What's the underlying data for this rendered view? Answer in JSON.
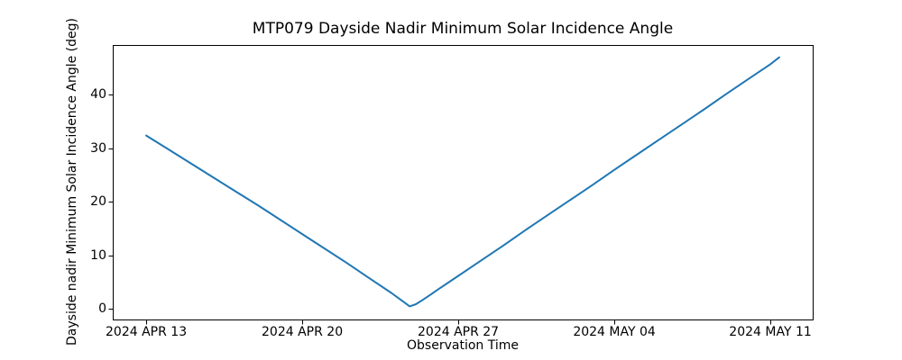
{
  "figure": {
    "background_color": "#ffffff",
    "spine_color": "#000000",
    "text_color": "#000000"
  },
  "chart_data": {
    "type": "line",
    "title": "MTP079 Dayside Nadir Minimum Solar Incidence Angle",
    "xlabel": "Observation Time",
    "ylabel": "Dayside nadir Minimum Solar Incidence Angle (deg)",
    "legend": "none",
    "grid": false,
    "line_color": "#1f77b4",
    "line_width": 2,
    "x_unit": "days since 2024 APR 13",
    "x_tick_labels": [
      "2024 APR 13",
      "2024 APR 20",
      "2024 APR 27",
      "2024 MAY 04",
      "2024 MAY 11"
    ],
    "x_tick_days": [
      0,
      7,
      14,
      21,
      28
    ],
    "y_tick_labels": [
      "0",
      "10",
      "20",
      "30",
      "40"
    ],
    "y_ticks": [
      0,
      10,
      20,
      30,
      40
    ],
    "xlim_days": [
      -1.5,
      29.9
    ],
    "ylim": [
      -1.95,
      49.3
    ],
    "description": "Angle starts near 32 deg on 2024 APR 13, decreases to a minimum of about 0.5 deg around 2024 APR 24-25, then rises to about 47 deg by 2024 MAY 11.",
    "series": [
      {
        "name": "dayside-nadir-min-solar-incidence-angle",
        "points": [
          [
            0,
            32.4
          ],
          [
            1,
            29.8
          ],
          [
            2,
            27.2
          ],
          [
            3,
            24.6
          ],
          [
            4,
            22.0
          ],
          [
            5,
            19.4
          ],
          [
            6,
            16.7
          ],
          [
            7,
            14.0
          ],
          [
            8,
            11.3
          ],
          [
            9,
            8.6
          ],
          [
            10,
            5.8
          ],
          [
            11,
            3.0
          ],
          [
            11.3,
            2.1
          ],
          [
            11.6,
            1.2
          ],
          [
            11.82,
            0.5
          ],
          [
            12.1,
            0.9
          ],
          [
            12.4,
            1.7
          ],
          [
            12.8,
            2.8
          ],
          [
            13,
            3.4
          ],
          [
            14,
            6.2
          ],
          [
            15,
            9.0
          ],
          [
            16,
            11.8
          ],
          [
            17,
            14.7
          ],
          [
            18,
            17.5
          ],
          [
            19,
            20.3
          ],
          [
            20,
            23.1
          ],
          [
            21,
            26.0
          ],
          [
            22,
            28.8
          ],
          [
            23,
            31.6
          ],
          [
            24,
            34.4
          ],
          [
            25,
            37.2
          ],
          [
            26,
            40.1
          ],
          [
            27,
            42.9
          ],
          [
            28,
            45.7
          ],
          [
            28.4,
            47.0
          ]
        ]
      }
    ]
  }
}
